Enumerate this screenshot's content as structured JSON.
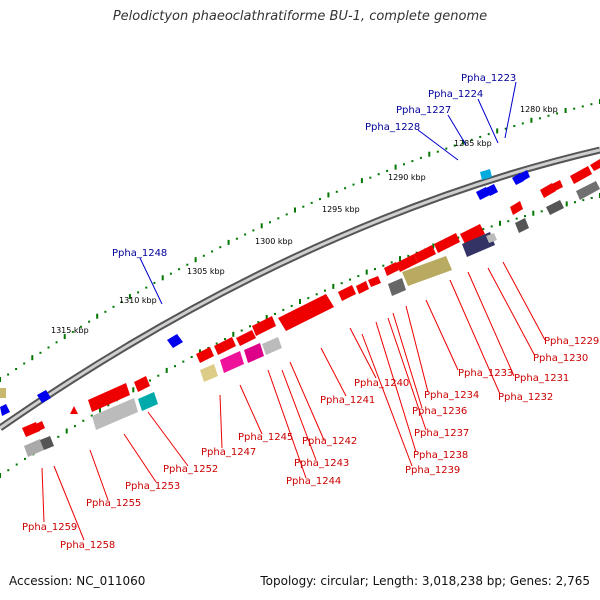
{
  "title": "Pelodictyon phaeoclathratiforme BU-1, complete genome",
  "footer": {
    "accession": "Accession: NC_011060",
    "topology": "Topology: circular; Length: 3,018,238 bp; Genes: 2,765"
  },
  "ruler_labels": [
    "1280 kbp",
    "1285 kbp",
    "1290 kbp",
    "1295 kbp",
    "1300 kbp",
    "1305 kbp",
    "1310 kbp",
    "1315 kbp"
  ],
  "gene_labels_outer": [
    "Ppha_1223",
    "Ppha_1224",
    "Ppha_1227",
    "Ppha_1228",
    "Ppha_1248"
  ],
  "gene_labels_inner": [
    "Ppha_1229",
    "Ppha_1230",
    "Ppha_1231",
    "Ppha_1232",
    "Ppha_1233",
    "Ppha_1234",
    "Ppha_1236",
    "Ppha_1237",
    "Ppha_1238",
    "Ppha_1239",
    "Ppha_1240",
    "Ppha_1241",
    "Ppha_1242",
    "Ppha_1243",
    "Ppha_1244",
    "Ppha_1245",
    "Ppha_1247",
    "Ppha_1252",
    "Ppha_1253",
    "Ppha_1255",
    "Ppha_1258",
    "Ppha_1259"
  ],
  "colors": {
    "forward_strand": "#ee0000",
    "reverse_strand": "#0000ee",
    "backbone": "#777777",
    "ruler_ticks": "#007700"
  }
}
